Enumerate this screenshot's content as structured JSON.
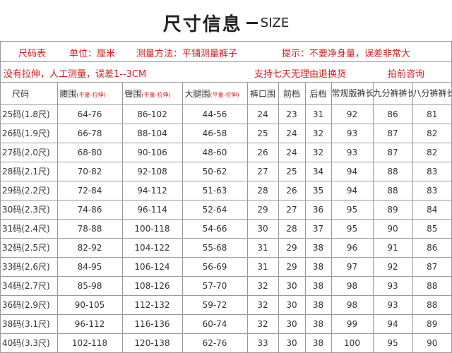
{
  "title": {
    "cn": "尺寸信息",
    "en": "SIZE"
  },
  "info": {
    "row1": [
      {
        "name": "chart-label",
        "text": "尺码表"
      },
      {
        "name": "unit-label",
        "text": "单位：厘米"
      },
      {
        "name": "method-label",
        "text": "测量方法：平铺测量裤子"
      },
      {
        "name": "tip-label",
        "text": "提示：不要净身量，误差非常大"
      }
    ],
    "row2": [
      {
        "name": "stretch-note",
        "text": "没有拉伸，人工测量，误差1--3CM"
      },
      {
        "name": "return-note",
        "text": "支持七天无理由退换货"
      },
      {
        "name": "consult-note",
        "text": "拍前咨询"
      }
    ]
  },
  "columns": {
    "size": "尺码",
    "waist": "腰围",
    "waist_sub": "(平量-拉伸)",
    "hip": "臀围",
    "hip_sub": "(平量-拉伸)",
    "thigh": "大腿围",
    "thigh_sub": "(平量-拉伸)",
    "hem": "裤口围",
    "front_rise": "前档",
    "back_rise": "后档",
    "regular_length": "常规版裤长",
    "ninth_length": "九分裤裤长",
    "eighth_length": "八分裤裤长"
  },
  "rows": [
    {
      "size": "25码(1.8尺)",
      "waist": "64-76",
      "hip": "86-102",
      "thigh": "44-56",
      "hem": "24",
      "front": "23",
      "back": "31",
      "regular": "92",
      "ninth": "86",
      "eighth": "81"
    },
    {
      "size": "26码(1.9尺)",
      "waist": "66-78",
      "hip": "88-104",
      "thigh": "46-58",
      "hem": "25",
      "front": "24",
      "back": "32",
      "regular": "93",
      "ninth": "87",
      "eighth": "82"
    },
    {
      "size": "27码(2.0尺)",
      "waist": "68-80",
      "hip": "90-106",
      "thigh": "48-60",
      "hem": "26",
      "front": "24",
      "back": "32",
      "regular": "93",
      "ninth": "87",
      "eighth": "82"
    },
    {
      "size": "28码(2.1尺)",
      "waist": "70-82",
      "hip": "92-108",
      "thigh": "50-62",
      "hem": "27",
      "front": "25",
      "back": "34",
      "regular": "94",
      "ninth": "88",
      "eighth": "83"
    },
    {
      "size": "29码(2.2尺)",
      "waist": "72-84",
      "hip": "94-112",
      "thigh": "51-63",
      "hem": "28",
      "front": "26",
      "back": "35",
      "regular": "94",
      "ninth": "88",
      "eighth": "83"
    },
    {
      "size": "30码(2.3尺)",
      "waist": "74-86",
      "hip": "96-114",
      "thigh": "52-64",
      "hem": "29",
      "front": "27",
      "back": "36",
      "regular": "95",
      "ninth": "89",
      "eighth": "84"
    },
    {
      "size": "31码(2.4尺)",
      "waist": "78-88",
      "hip": "100-118",
      "thigh": "54-66",
      "hem": "30",
      "front": "28",
      "back": "37",
      "regular": "95",
      "ninth": "90",
      "eighth": "85"
    },
    {
      "size": "32码(2.5尺)",
      "waist": "82-92",
      "hip": "104-122",
      "thigh": "55-68",
      "hem": "31",
      "front": "29",
      "back": "38",
      "regular": "96",
      "ninth": "91",
      "eighth": "86"
    },
    {
      "size": "33码(2.6尺)",
      "waist": "84-95",
      "hip": "106-124",
      "thigh": "56-69",
      "hem": "31",
      "front": "29",
      "back": "38",
      "regular": "97",
      "ninth": "92",
      "eighth": "87"
    },
    {
      "size": "34码(2.7尺)",
      "waist": "85-98",
      "hip": "108-126",
      "thigh": "57-70",
      "hem": "32",
      "front": "30",
      "back": "38",
      "regular": "98",
      "ninth": "93",
      "eighth": "88"
    },
    {
      "size": "36码(2.9尺)",
      "waist": "90-105",
      "hip": "112-132",
      "thigh": "59-72",
      "hem": "32",
      "front": "30",
      "back": "38",
      "regular": "98",
      "ninth": "93",
      "eighth": "88"
    },
    {
      "size": "38码(3.1尺)",
      "waist": "96-112",
      "hip": "116-136",
      "thigh": "60-74",
      "hem": "32",
      "front": "30",
      "back": "38",
      "regular": "99",
      "ninth": "94",
      "eighth": "89"
    },
    {
      "size": "40码(3.3尺)",
      "waist": "102-118",
      "hip": "120-138",
      "thigh": "62-76",
      "hem": "33",
      "front": "30",
      "back": "38",
      "regular": "100",
      "ninth": "95",
      "eighth": "90"
    }
  ]
}
